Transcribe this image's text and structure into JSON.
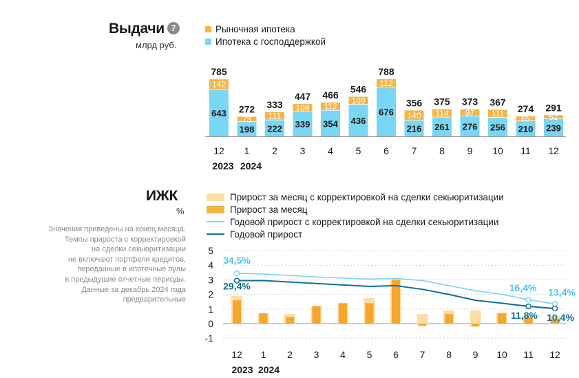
{
  "colors": {
    "orange": "#F5B547",
    "orange_dark": "#F4A72C",
    "orange_light": "#FCDDA4",
    "cyan": "#7AD6F5",
    "cyan_line": "#7FD3F1",
    "navy_line": "#0E6F9A",
    "label_cyan": "#4FC3EE",
    "label_navy": "#0E6F9A"
  },
  "issuance": {
    "title": "Выдачи",
    "badge": "7",
    "unit": "млрд руб.",
    "legend": {
      "market": "Рыночная ипотека",
      "state": "Ипотека с господдержкой"
    }
  },
  "izhk": {
    "title": "ИЖК",
    "unit": "%",
    "legend": {
      "adj_monthly": "Прирост за месяц с корректировкой на сделки секьюритизации",
      "monthly": "Прирост за месяц",
      "adj_annual": "Годовой прирост с корректировкой на сделки секьюритизации",
      "annual": "Годовой прирост"
    },
    "note": [
      "Значения приведены на конец месяца.",
      "Темпы прироста с корректировкой",
      "на сделки секьюритизации",
      "не включают портфели кредитов,",
      "переданные в ипотечные пулы",
      "в предыдущие отчетные периоды.",
      "Данные за декабрь 2024 года",
      "предварительные"
    ]
  },
  "chart_data": [
    {
      "type": "bar",
      "stacked": true,
      "title": "Выдачи",
      "ylabel": "млрд руб.",
      "categories": [
        "12",
        "1",
        "2",
        "3",
        "4",
        "5",
        "6",
        "7",
        "8",
        "9",
        "10",
        "11",
        "12"
      ],
      "year_labels": [
        {
          "text": "2023",
          "index": 0
        },
        {
          "text": "2024",
          "index": 1
        }
      ],
      "series": [
        {
          "name": "Ипотека с господдержкой",
          "values": [
            643,
            198,
            222,
            339,
            354,
            436,
            676,
            216,
            261,
            276,
            256,
            210,
            239
          ]
        },
        {
          "name": "Рыночная ипотека",
          "values": [
            142,
            73,
            111,
            108,
            112,
            109,
            112,
            140,
            114,
            97,
            111,
            65,
            52
          ]
        }
      ],
      "totals": [
        785,
        272,
        333,
        447,
        466,
        546,
        788,
        356,
        375,
        373,
        367,
        274,
        291
      ],
      "ylim": [
        0,
        800
      ]
    },
    {
      "type": "bar+line",
      "title": "ИЖК",
      "ylabel": "%",
      "categories": [
        "12",
        "1",
        "2",
        "3",
        "4",
        "5",
        "6",
        "7",
        "8",
        "9",
        "10",
        "11",
        "12"
      ],
      "year_labels": [
        {
          "text": "2023",
          "index": 0
        },
        {
          "text": "2024",
          "index": 1
        }
      ],
      "y_ticks": [
        "5",
        "4",
        "3",
        "2",
        "1",
        "0",
        "-1"
      ],
      "ylim": [
        -1,
        5
      ],
      "bars": [
        {
          "name": "Прирост за месяц с корректировкой на сделки секьюритизации",
          "values": [
            1.9,
            0.7,
            0.65,
            1.2,
            1.4,
            1.75,
            3.05,
            0.65,
            0.9,
            0.9,
            0.75,
            0.55,
            0.55
          ]
        },
        {
          "name": "Прирост за месяц",
          "values": [
            1.6,
            0.7,
            0.45,
            1.2,
            1.4,
            1.4,
            3.0,
            -0.15,
            0.65,
            -0.2,
            0.7,
            0.45,
            0.3
          ]
        }
      ],
      "lines": [
        {
          "name": "Годовой прирост с корректировкой на сделки секьюритизации",
          "values": [
            3.45,
            3.4,
            3.3,
            3.2,
            3.12,
            3.05,
            3.1,
            2.95,
            2.6,
            2.25,
            2.0,
            1.64,
            1.34
          ],
          "labels": {
            "0": "34,5%",
            "11": "16,4%",
            "12": "13,4%"
          }
        },
        {
          "name": "Годовой прирост",
          "values": [
            2.94,
            2.95,
            2.85,
            2.75,
            2.65,
            2.55,
            2.6,
            2.35,
            2.0,
            1.6,
            1.4,
            1.18,
            1.04
          ],
          "labels": {
            "0": "29,4%",
            "11": "11,8%",
            "12": "10,4%"
          }
        }
      ]
    }
  ]
}
